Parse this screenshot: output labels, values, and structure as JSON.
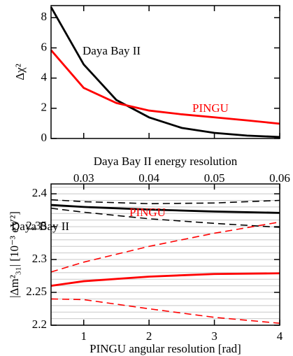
{
  "chart_data": [
    {
      "type": "line",
      "ylabel": "Δχ²",
      "xlabel": "Daya Bay II energy resolution",
      "x": [
        0.025,
        0.03,
        0.035,
        0.04,
        0.045,
        0.05,
        0.055,
        0.06
      ],
      "xlim": [
        0.025,
        0.06
      ],
      "xticks": [
        0.03,
        0.04,
        0.05,
        0.06
      ],
      "ylim": [
        0,
        8.8
      ],
      "yticks": [
        0,
        2,
        4,
        6,
        8
      ],
      "series": [
        {
          "name": "Daya Bay II",
          "color": "#000000",
          "values": [
            8.7,
            4.9,
            2.55,
            1.4,
            0.7,
            0.37,
            0.19,
            0.1
          ]
        },
        {
          "name": "PINGU",
          "color": "#ff0000",
          "values": [
            5.85,
            3.35,
            2.35,
            1.85,
            1.6,
            1.4,
            1.2,
            0.98
          ]
        }
      ]
    },
    {
      "type": "line",
      "ylabel": "|Δm²₃₁|  [10⁻³ eV²]",
      "xlabel": "PINGU angular resolution [rad]",
      "x": [
        0.5,
        1,
        2,
        3,
        4
      ],
      "xlim": [
        0.5,
        4
      ],
      "xticks": [
        1,
        2,
        3,
        4
      ],
      "ylim": [
        2.2,
        2.415
      ],
      "yticks": [
        2.2,
        2.25,
        2.3,
        2.35,
        2.4
      ],
      "yminor": [
        2.21,
        2.22,
        2.23,
        2.24,
        2.26,
        2.27,
        2.28,
        2.29,
        2.31,
        2.32,
        2.33,
        2.34,
        2.36,
        2.37,
        2.38,
        2.39,
        2.41
      ],
      "series": [
        {
          "name": "Daya Bay II",
          "color": "#000000",
          "values": [
            2.383,
            2.38,
            2.376,
            2.373,
            2.371
          ]
        },
        {
          "color": "#000000",
          "dash": true,
          "values": [
            2.391,
            2.388,
            2.385,
            2.386,
            2.39
          ]
        },
        {
          "color": "#000000",
          "dash": true,
          "values": [
            2.378,
            2.372,
            2.362,
            2.355,
            2.349
          ]
        },
        {
          "name": "PINGU",
          "color": "#ff0000",
          "values": [
            2.26,
            2.267,
            2.274,
            2.278,
            2.279
          ]
        },
        {
          "color": "#ff0000",
          "dash": true,
          "values": [
            2.281,
            2.296,
            2.32,
            2.34,
            2.357
          ]
        },
        {
          "color": "#ff0000",
          "dash": true,
          "values": [
            2.24,
            2.239,
            2.225,
            2.212,
            2.203
          ]
        }
      ]
    }
  ]
}
